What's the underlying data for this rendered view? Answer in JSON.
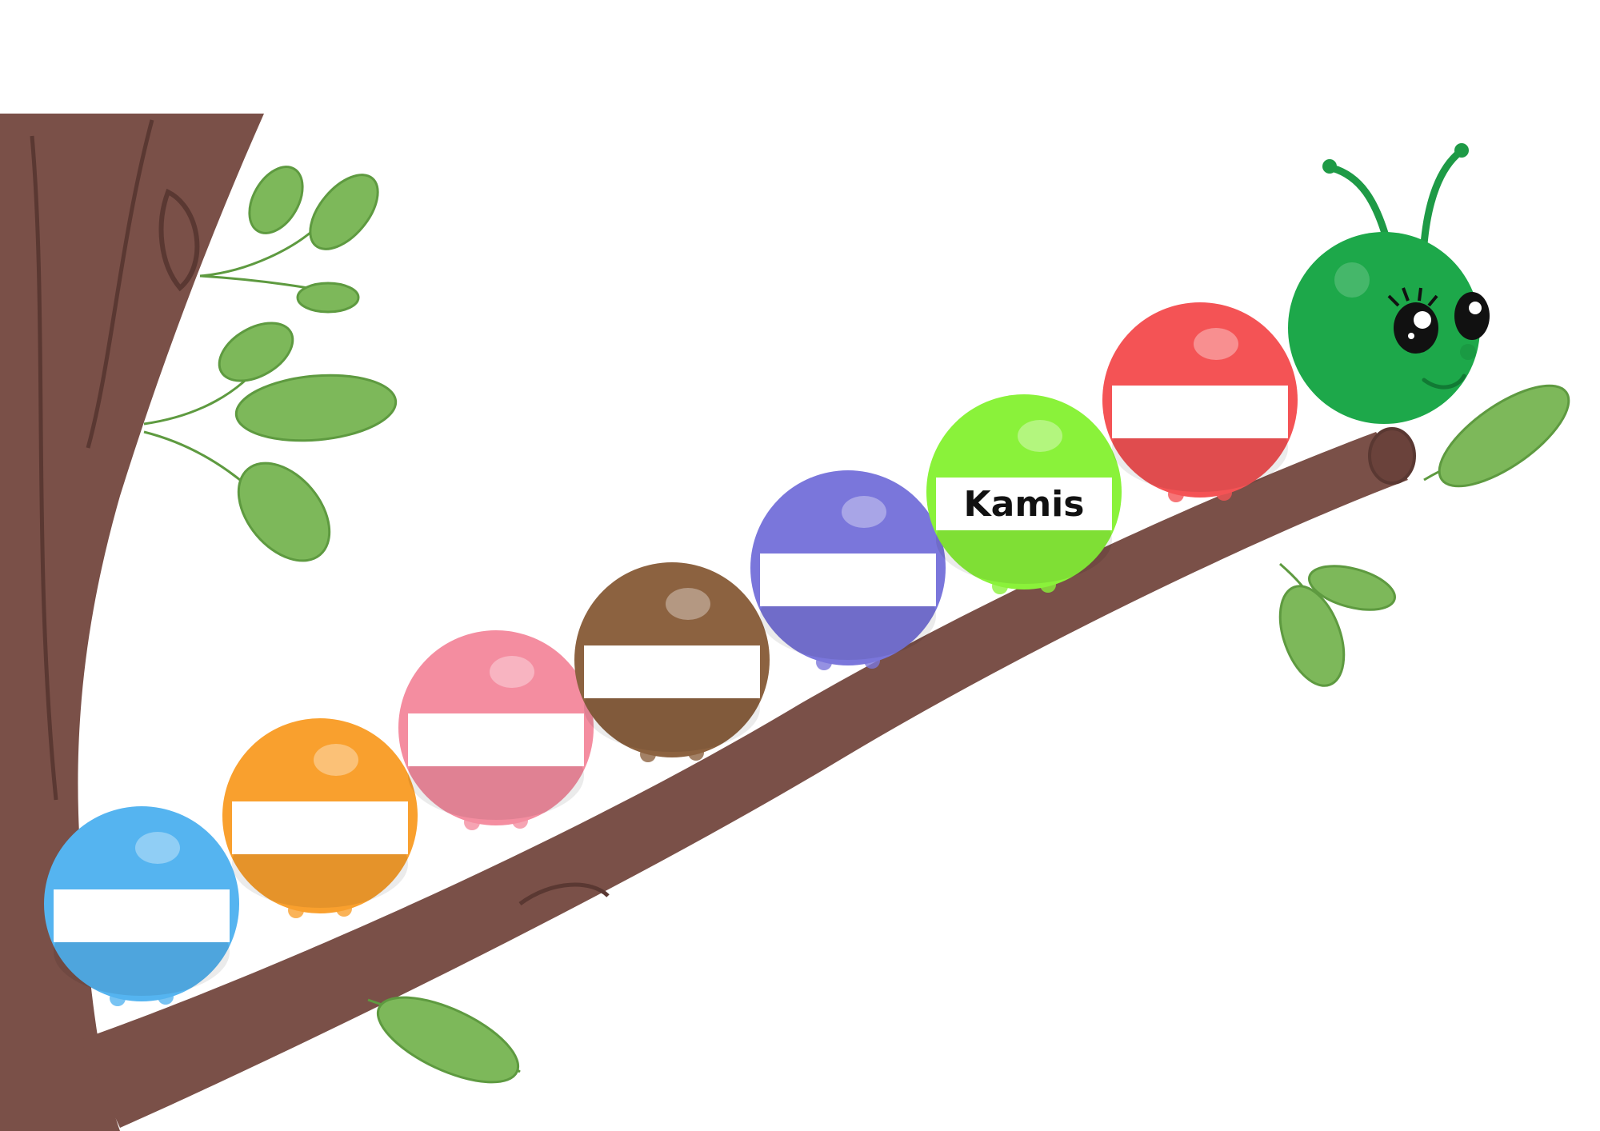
{
  "worksheet": {
    "segments": [
      {
        "id": "seg-1",
        "color": "#55B4F0",
        "label": ""
      },
      {
        "id": "seg-2",
        "color": "#F9A02E",
        "label": ""
      },
      {
        "id": "seg-3",
        "color": "#F48DA0",
        "label": ""
      },
      {
        "id": "seg-4",
        "color": "#8C6240",
        "label": ""
      },
      {
        "id": "seg-5",
        "color": "#7A76DB",
        "label": ""
      },
      {
        "id": "seg-6",
        "color": "#8AF23A",
        "label": "Kamis"
      },
      {
        "id": "seg-7",
        "color": "#F45355",
        "label": ""
      }
    ],
    "head": {
      "color": "#1DA84A"
    },
    "branch": {
      "color": "#7A5048"
    },
    "leaves": {
      "color": "#7DB85A"
    }
  }
}
